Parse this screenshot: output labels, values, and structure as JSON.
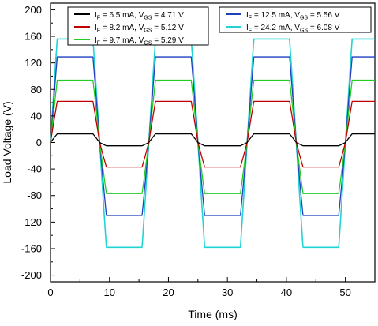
{
  "chart_data": {
    "type": "line",
    "title": "",
    "xlabel": "Time (ms)",
    "ylabel": "Load Voltage (V)",
    "xlim": [
      0,
      55
    ],
    "ylim": [
      -210,
      210
    ],
    "xticks": [
      0,
      10,
      20,
      30,
      40,
      50
    ],
    "yticks": [
      -200,
      -160,
      -120,
      -80,
      -40,
      0,
      40,
      80,
      120,
      160,
      200
    ],
    "grid": false,
    "legend": [
      {
        "placement": "top-left",
        "entries": [
          {
            "series_index": 0,
            "prefix": "I",
            "sub1": "F",
            "mid": " = 6.5 mA, V",
            "sub2": "GS",
            "suffix": " = 4.71 V"
          },
          {
            "series_index": 1,
            "prefix": "I",
            "sub1": "F",
            "mid": " = 8.2 mA, V",
            "sub2": "GS",
            "suffix": " = 5.12 V"
          },
          {
            "series_index": 2,
            "prefix": "I",
            "sub1": "F",
            "mid": " = 9.7 mA, V",
            "sub2": "GS",
            "suffix": " = 5.29 V"
          }
        ]
      },
      {
        "placement": "top-right",
        "entries": [
          {
            "series_index": 3,
            "prefix": "I",
            "sub1": "F",
            "mid": " = 12.5 mA, V",
            "sub2": "GS",
            "suffix": " = 5.56 V"
          },
          {
            "series_index": 4,
            "prefix": "I",
            "sub1": "F",
            "mid": " = 24.2 mA, V",
            "sub2": "GS",
            "suffix": " = 6.08 V"
          }
        ]
      }
    ],
    "period_ms": 16.67,
    "series": [
      {
        "name": "IF = 6.5 mA, VGS = 4.71 V",
        "color": "#000000",
        "pos_peak": 13,
        "neg_peak": -5
      },
      {
        "name": "IF = 8.2 mA, VGS = 5.12 V",
        "color": "#c00000",
        "pos_peak": 62,
        "neg_peak": -37
      },
      {
        "name": "IF = 9.7 mA, VGS = 5.29 V",
        "color": "#22cc22",
        "pos_peak": 94,
        "neg_peak": -77
      },
      {
        "name": "IF = 12.5 mA, VGS = 5.56 V",
        "color": "#1f3fbf",
        "pos_peak": 129,
        "neg_peak": -110
      },
      {
        "name": "IF = 24.2 mA, VGS = 6.08 V",
        "color": "#22d3d3",
        "pos_peak": 156,
        "neg_peak": -158
      }
    ]
  }
}
